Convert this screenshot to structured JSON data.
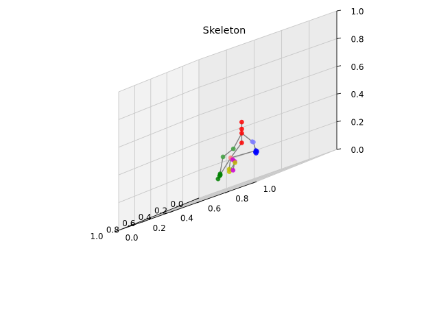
{
  "chart_data": {
    "type": "scatter3d",
    "title": "Skeleton",
    "x_ticks": [
      "0.0",
      "0.2",
      "0.4",
      "0.6",
      "0.8",
      "1.0"
    ],
    "y_ticks": [
      "0.0",
      "0.2",
      "0.4",
      "0.6",
      "0.8",
      "1.0"
    ],
    "z_ticks": [
      "0.0",
      "0.2",
      "0.4",
      "0.6",
      "0.8",
      "1.0"
    ],
    "xlim": [
      0,
      1
    ],
    "ylim": [
      0,
      1
    ],
    "zlim": [
      0,
      1
    ],
    "grid": true,
    "joints": [
      {
        "id": "j1",
        "x": 0.36,
        "y": 0.52,
        "z": 0.45,
        "color": "#ff0000"
      },
      {
        "id": "j2",
        "x": 0.36,
        "y": 0.52,
        "z": 0.4,
        "color": "#ff0000"
      },
      {
        "id": "j3",
        "x": 0.36,
        "y": 0.52,
        "z": 0.37,
        "color": "#ff0000"
      },
      {
        "id": "j4",
        "x": 0.36,
        "y": 0.52,
        "z": 0.3,
        "color": "#ff0000"
      },
      {
        "id": "j5",
        "x": 0.28,
        "y": 0.55,
        "z": 0.28,
        "color": "#8080ff"
      },
      {
        "id": "j6",
        "x": 0.18,
        "y": 0.5,
        "z": 0.27,
        "color": "#8080ff"
      },
      {
        "id": "j7",
        "x": 0.08,
        "y": 0.46,
        "z": 0.2,
        "color": "#0000ff"
      },
      {
        "id": "j8",
        "x": 0.07,
        "y": 0.45,
        "z": 0.19,
        "color": "#0000ff"
      },
      {
        "id": "j9",
        "x": 0.06,
        "y": 0.45,
        "z": 0.18,
        "color": "#0000ff"
      },
      {
        "id": "j10",
        "x": 0.05,
        "y": 0.45,
        "z": 0.19,
        "color": "#0000ff"
      },
      {
        "id": "j11",
        "x": 0.43,
        "y": 0.5,
        "z": 0.28,
        "color": "#40a040"
      },
      {
        "id": "j12",
        "x": 0.49,
        "y": 0.46,
        "z": 0.25,
        "color": "#40a040"
      },
      {
        "id": "j13",
        "x": 0.43,
        "y": 0.4,
        "z": 0.12,
        "color": "#008000"
      },
      {
        "id": "j14",
        "x": 0.38,
        "y": 0.36,
        "z": 0.1,
        "color": "#008000"
      },
      {
        "id": "j15",
        "x": 0.32,
        "y": 0.34,
        "z": 0.13,
        "color": "#008000"
      },
      {
        "id": "j16",
        "x": 0.3,
        "y": 0.33,
        "z": 0.12,
        "color": "#008000"
      },
      {
        "id": "j17",
        "x": 0.36,
        "y": 0.44,
        "z": 0.22,
        "color": "#ff8080"
      },
      {
        "id": "j18",
        "x": 0.3,
        "y": 0.42,
        "z": 0.2,
        "color": "#cc00cc"
      },
      {
        "id": "j19",
        "x": 0.24,
        "y": 0.4,
        "z": 0.18,
        "color": "#cc00cc"
      },
      {
        "id": "j20",
        "x": 0.22,
        "y": 0.39,
        "z": 0.17,
        "color": "#c0c000"
      },
      {
        "id": "j21",
        "x": 0.24,
        "y": 0.36,
        "z": 0.12,
        "color": "#c0c000"
      },
      {
        "id": "j22",
        "x": 0.31,
        "y": 0.4,
        "z": 0.14,
        "color": "#c0c000"
      },
      {
        "id": "j23",
        "x": 0.21,
        "y": 0.37,
        "z": 0.12,
        "color": "#cc00cc"
      }
    ],
    "bones": [
      [
        "j1",
        "j2"
      ],
      [
        "j2",
        "j3"
      ],
      [
        "j3",
        "j4"
      ],
      [
        "j3",
        "j5"
      ],
      [
        "j5",
        "j6"
      ],
      [
        "j6",
        "j7"
      ],
      [
        "j7",
        "j8"
      ],
      [
        "j3",
        "j11"
      ],
      [
        "j11",
        "j12"
      ],
      [
        "j12",
        "j13"
      ],
      [
        "j13",
        "j14"
      ],
      [
        "j4",
        "j17"
      ],
      [
        "j17",
        "j18"
      ],
      [
        "j18",
        "j19"
      ],
      [
        "j19",
        "j23"
      ],
      [
        "j17",
        "j22"
      ],
      [
        "j22",
        "j21"
      ],
      [
        "j21",
        "j20"
      ],
      [
        "j7",
        "j17"
      ],
      [
        "j13",
        "j17"
      ]
    ]
  }
}
